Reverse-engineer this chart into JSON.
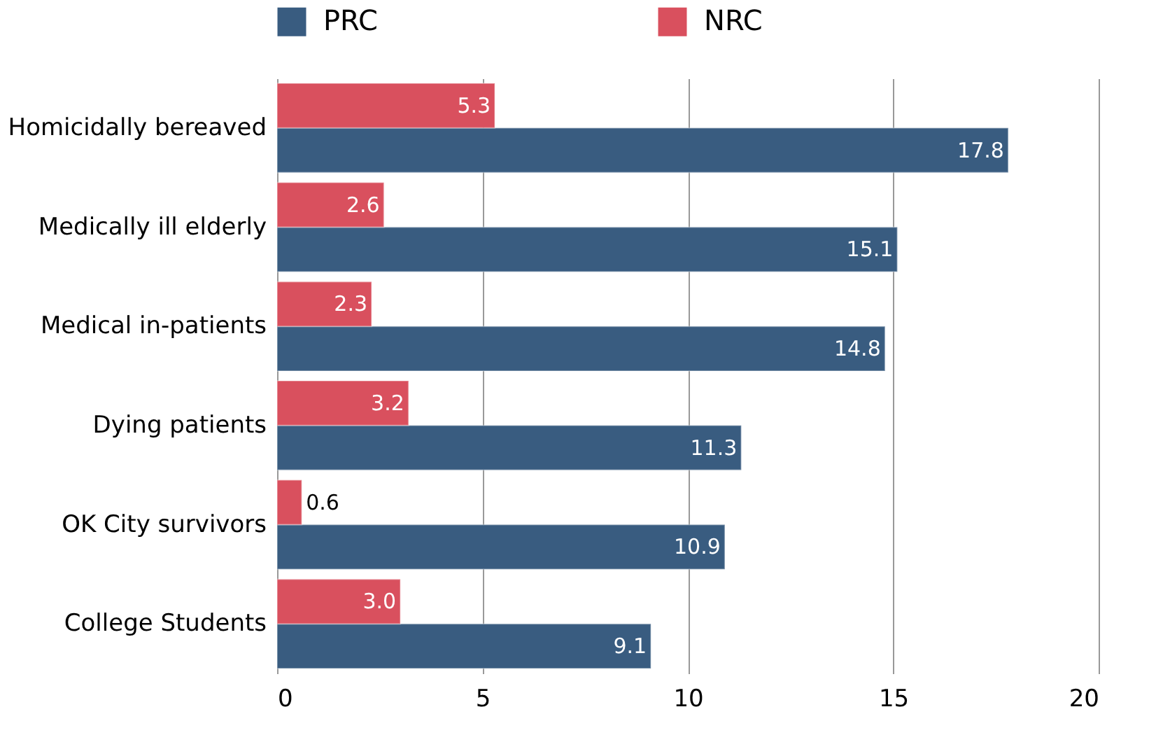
{
  "chart_data": {
    "type": "bar",
    "orientation": "horizontal",
    "categories": [
      "Homicidally bereaved",
      "Medically ill elderly",
      "Medical in-patients",
      "Dying patients",
      "OK City survivors",
      "College Students"
    ],
    "series": [
      {
        "name": "PRC",
        "color": "#395c80",
        "values": [
          17.8,
          15.1,
          14.8,
          11.3,
          10.9,
          9.1
        ],
        "value_labels": [
          "17.8",
          "15.1",
          "14.8",
          "11.3",
          "10.9",
          "9.1"
        ]
      },
      {
        "name": "NRC",
        "color": "#d9505e",
        "values": [
          5.3,
          2.6,
          2.3,
          3.2,
          0.6,
          3.0
        ],
        "value_labels": [
          "5.3",
          "2.6",
          "2.3",
          "3.2",
          "0.6",
          "3.0"
        ]
      }
    ],
    "xlim": [
      0,
      20
    ],
    "xticks": [
      0,
      5,
      10,
      15,
      20
    ],
    "grid": "x",
    "legend": "top"
  }
}
